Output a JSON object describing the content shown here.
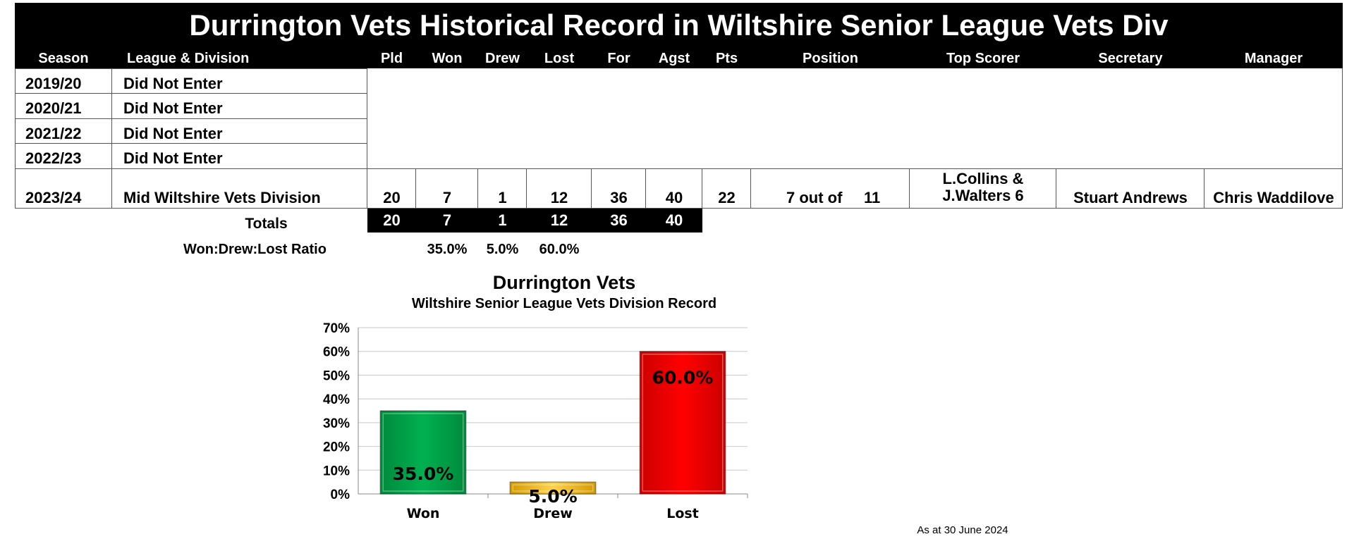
{
  "title": "Durrington Vets Historical Record in Wiltshire Senior League Vets Div",
  "headers": {
    "season": "Season",
    "league": "League & Division",
    "pld": "Pld",
    "won": "Won",
    "drew": "Drew",
    "lost": "Lost",
    "for": "For",
    "agst": "Agst",
    "pts": "Pts",
    "position": "Position",
    "top_scorer": "Top Scorer",
    "secretary": "Secretary",
    "manager": "Manager"
  },
  "did_not_enter": [
    {
      "season": "2019/20",
      "league": "Did Not Enter"
    },
    {
      "season": "2020/21",
      "league": "Did Not Enter"
    },
    {
      "season": "2021/22",
      "league": "Did Not Enter"
    },
    {
      "season": "2022/23",
      "league": "Did Not Enter"
    }
  ],
  "season_2023": {
    "season": "2023/24",
    "league": "Mid Wiltshire Vets Division",
    "pld": "20",
    "won": "7",
    "drew": "1",
    "lost": "12",
    "for": "36",
    "agst": "40",
    "pts": "22",
    "position_pre": "7 out of",
    "position_total": "11",
    "top_scorer_line1": "L.Collins &",
    "top_scorer_line2": "J.Walters 6",
    "secretary": "Stuart Andrews",
    "manager": "Chris Waddilove"
  },
  "totals": {
    "label": "Totals",
    "pld": "20",
    "won": "7",
    "drew": "1",
    "lost": "12",
    "for": "36",
    "agst": "40"
  },
  "ratio": {
    "label": "Won:Drew:Lost Ratio",
    "won": "35.0%",
    "drew": "5.0%",
    "lost": "60.0%"
  },
  "chart_data": {
    "type": "bar",
    "title": "Durrington Vets",
    "subtitle": "Wiltshire Senior League Vets Division Record",
    "categories": [
      "Won",
      "Drew",
      "Lost"
    ],
    "values": [
      35.0,
      5.0,
      60.0
    ],
    "data_labels": [
      "35.0%",
      "5.0%",
      "60.0%"
    ],
    "colors": [
      "#00b050",
      "#ffc000",
      "#ff0000"
    ],
    "ylim": [
      0,
      70
    ],
    "yticks": [
      0,
      10,
      20,
      30,
      40,
      50,
      60,
      70
    ],
    "ytick_labels": [
      "0%",
      "10%",
      "20%",
      "30%",
      "40%",
      "50%",
      "60%",
      "70%"
    ],
    "grid": true,
    "xlabel": "",
    "ylabel": ""
  },
  "footer": "As at 30 June 2024"
}
